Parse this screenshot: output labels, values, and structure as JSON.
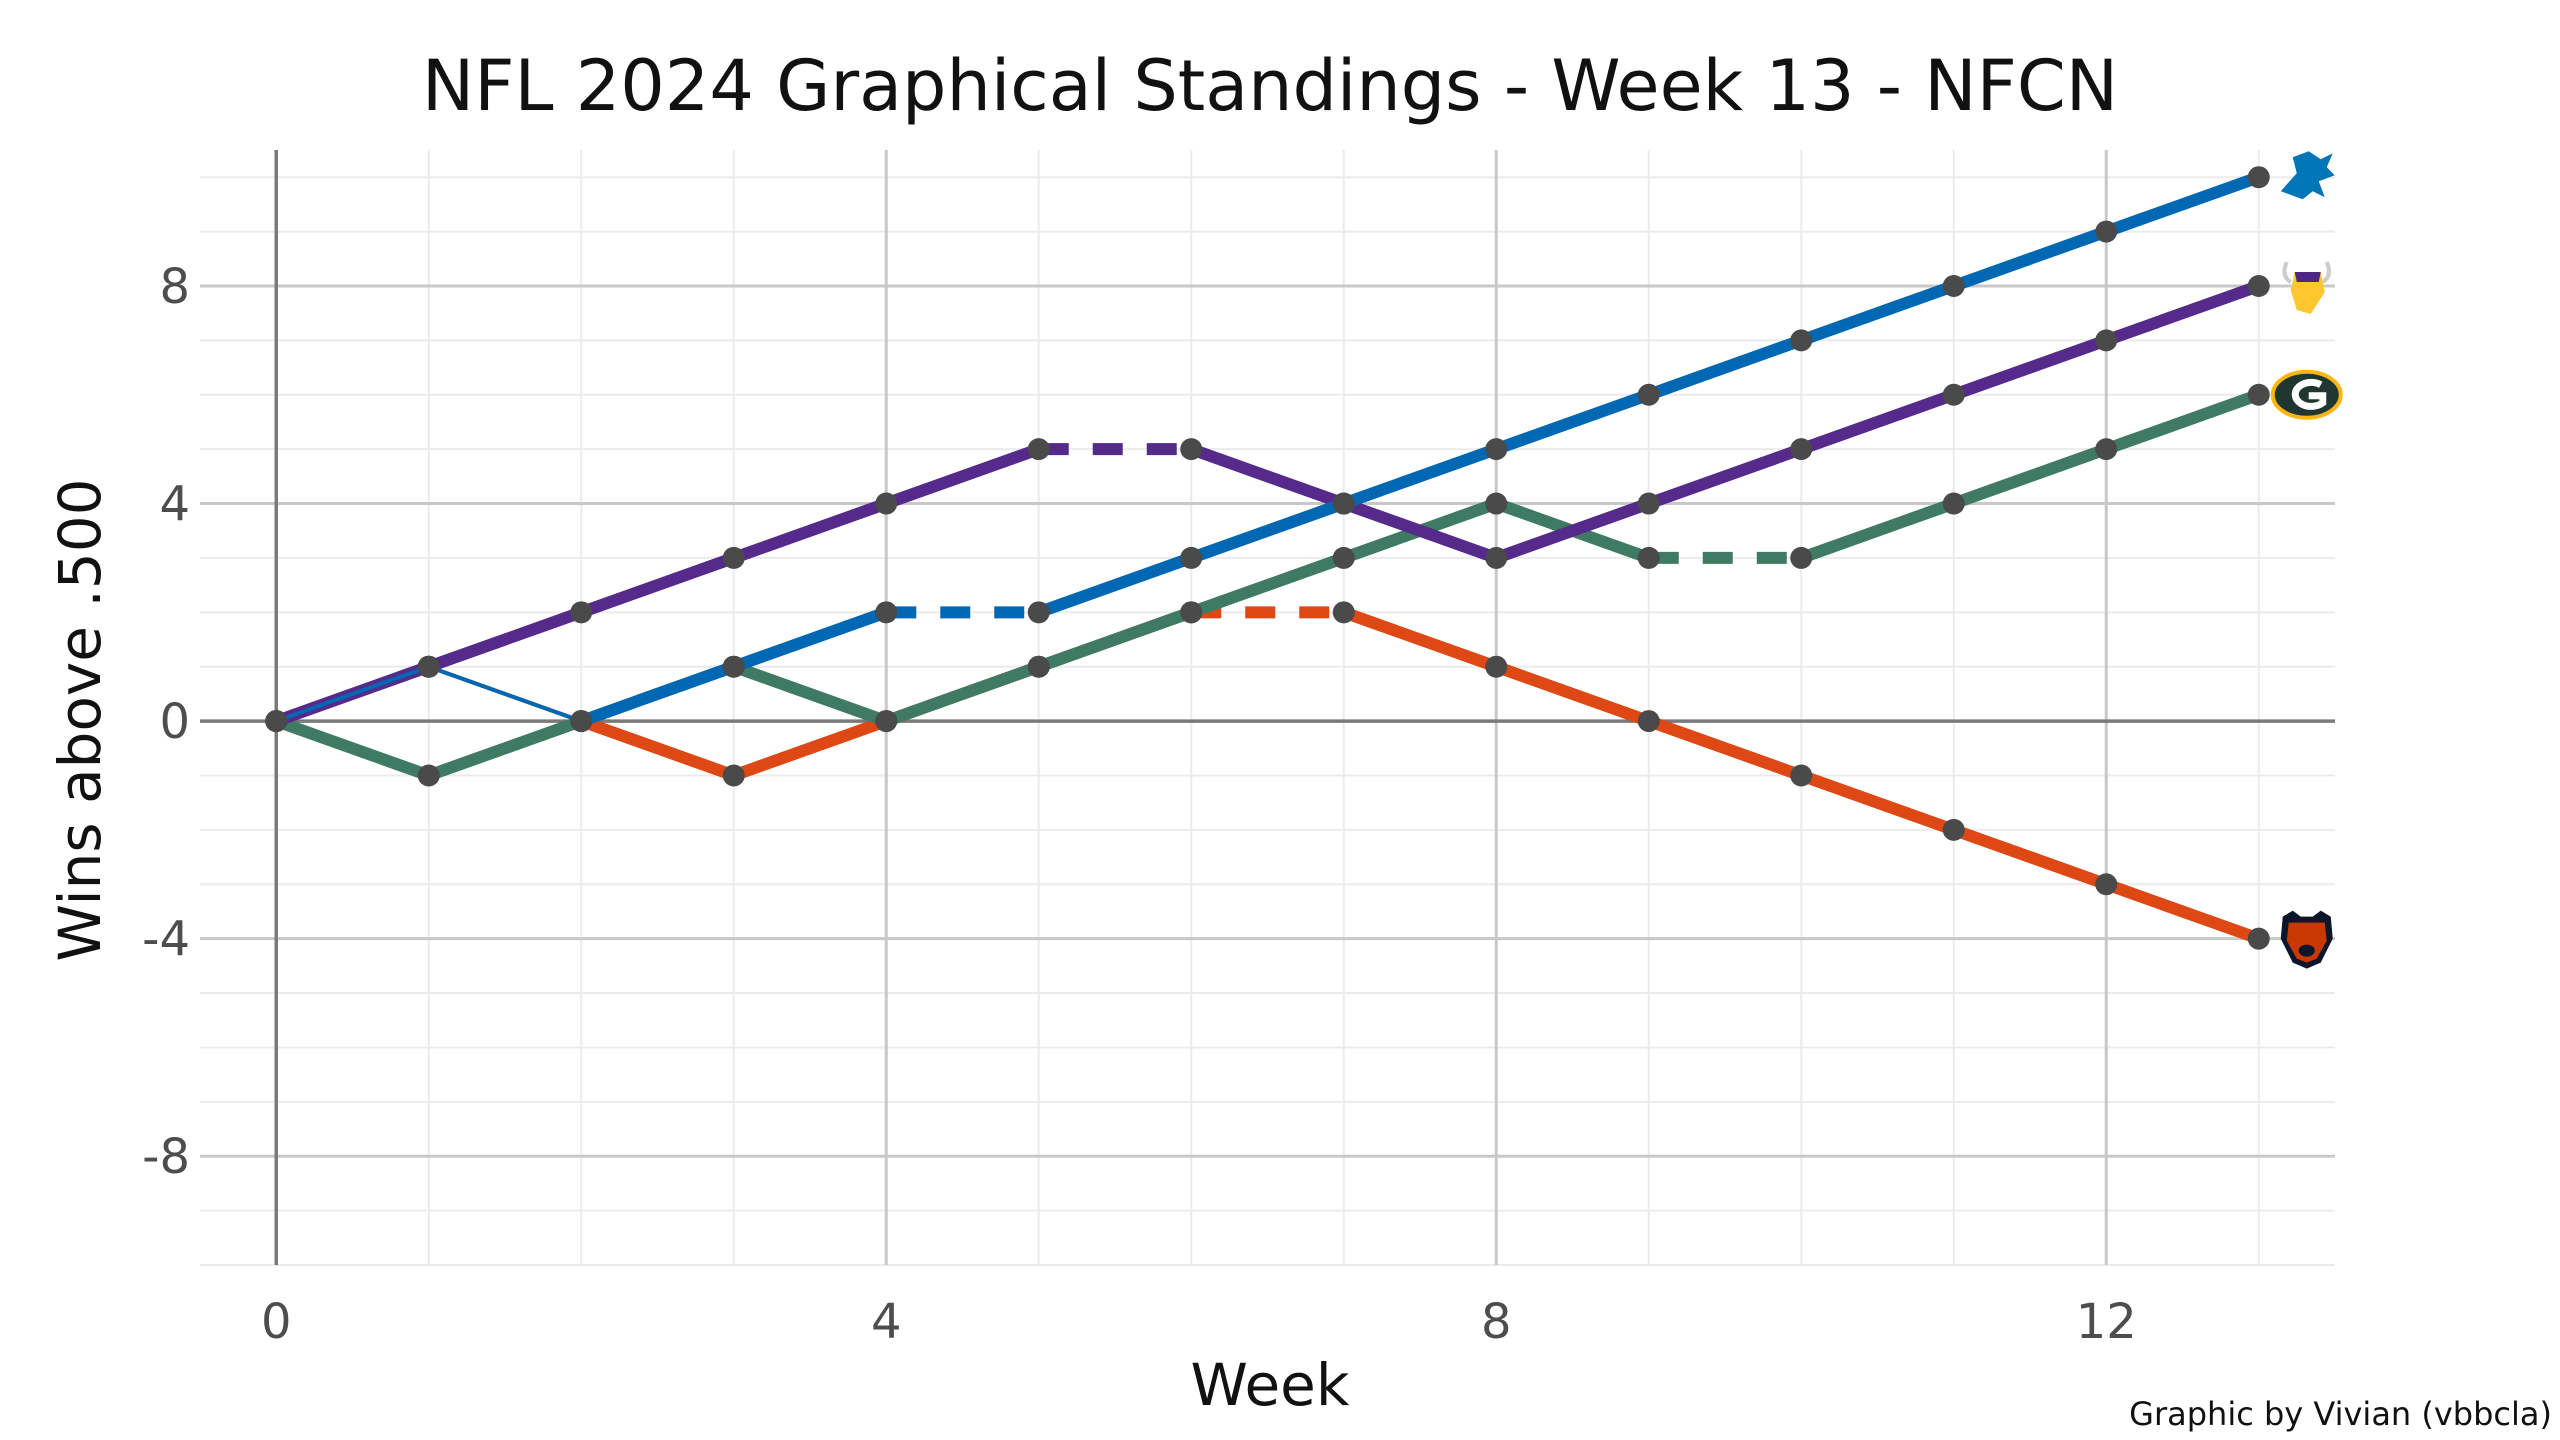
{
  "chart_data": {
    "type": "line",
    "title": "NFL 2024 Graphical Standings - Week 13 - NFCN",
    "xlabel": "Week",
    "ylabel": "Wins above .500",
    "caption": "Graphic by Vivian (vbbcla)",
    "xlim": [
      -0.5,
      13.5
    ],
    "ylim": [
      -10,
      10.5
    ],
    "x_ticks": [
      0,
      4,
      8,
      12
    ],
    "x_tick_labels": [
      "0",
      "4",
      "8",
      "12"
    ],
    "y_ticks": [
      -8,
      -4,
      0,
      4,
      8
    ],
    "y_tick_labels": [
      "-8",
      "-4",
      "0",
      "4",
      "8"
    ],
    "grid": true,
    "legend": "none",
    "series": [
      {
        "team": "CHI",
        "color": "#dd4814",
        "logo": "bear-head",
        "x": [
          0,
          1,
          2,
          3,
          4,
          5,
          6,
          7,
          8,
          9,
          10,
          11,
          12,
          13
        ],
        "values": [
          0,
          1,
          0,
          -1,
          0,
          1,
          2,
          2,
          1,
          0,
          -1,
          -2,
          -3,
          -4
        ]
      },
      {
        "team": "GB",
        "color": "#3f7a62",
        "logo": "g-oval",
        "x": [
          0,
          1,
          2,
          3,
          4,
          5,
          6,
          7,
          8,
          9,
          10,
          11,
          12,
          13
        ],
        "values": [
          0,
          -1,
          0,
          1,
          0,
          1,
          2,
          3,
          4,
          3,
          3,
          4,
          5,
          6
        ]
      },
      {
        "team": "MIN",
        "color": "#552a8a",
        "logo": "viking-head",
        "x": [
          0,
          1,
          2,
          3,
          4,
          5,
          6,
          7,
          8,
          9,
          10,
          11,
          12,
          13
        ],
        "values": [
          0,
          1,
          2,
          3,
          4,
          5,
          5,
          4,
          3,
          4,
          5,
          6,
          7,
          8
        ]
      },
      {
        "team": "DET",
        "color": "#0068b3",
        "logo": "lion",
        "x": [
          0,
          1,
          2,
          3,
          4,
          5,
          6,
          7,
          8,
          9,
          10,
          11,
          12,
          13
        ],
        "values": [
          0,
          1,
          0,
          1,
          2,
          2,
          3,
          4,
          5,
          6,
          7,
          8,
          9,
          10
        ]
      }
    ],
    "point_color": "#4a4a4a"
  }
}
